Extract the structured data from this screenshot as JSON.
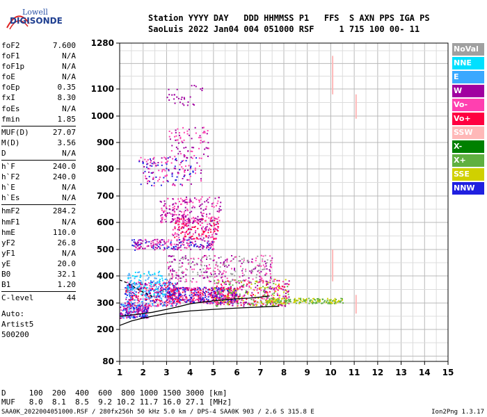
{
  "logo": {
    "top": "Lowell",
    "bottom": "DIGISONDE"
  },
  "header": {
    "line1": "Station YYYY DAY   DDD HHMMSS P1   FFS  S AXN PPS IGA PS",
    "line2": "SaoLuis 2022 Jan04 004 051000 RSF     1 715 100 00- 11"
  },
  "params": [
    {
      "k": "foF2",
      "v": "7.600"
    },
    {
      "k": "foF1",
      "v": "N/A"
    },
    {
      "k": "foF1p",
      "v": "N/A"
    },
    {
      "k": "foE",
      "v": "N/A"
    },
    {
      "k": "foEp",
      "v": "0.35"
    },
    {
      "k": "fxI",
      "v": "8.30"
    },
    {
      "k": "foEs",
      "v": "N/A"
    },
    {
      "k": "fmin",
      "v": "1.85"
    },
    {
      "k": "MUF(D)",
      "v": "27.07"
    },
    {
      "k": "M(D)",
      "v": "3.56"
    },
    {
      "k": "D",
      "v": "N/A"
    },
    {
      "k": "h`F",
      "v": "240.0"
    },
    {
      "k": "h`F2",
      "v": "240.0"
    },
    {
      "k": "h`E",
      "v": "N/A"
    },
    {
      "k": "h`Es",
      "v": "N/A"
    },
    {
      "k": "hmF2",
      "v": "284.2"
    },
    {
      "k": "hmF1",
      "v": "N/A"
    },
    {
      "k": "hmE",
      "v": "110.0"
    },
    {
      "k": "yF2",
      "v": "26.8"
    },
    {
      "k": "yF1",
      "v": "N/A"
    },
    {
      "k": "yE",
      "v": "20.0"
    },
    {
      "k": "B0",
      "v": "32.1"
    },
    {
      "k": "B1",
      "v": "1.20"
    },
    {
      "k": "C-level",
      "v": "44"
    }
  ],
  "auto": [
    "Auto:",
    "Artist5",
    "500200"
  ],
  "legend": [
    {
      "label": "NoVal",
      "color": "#a0a0a0"
    },
    {
      "label": "NNE",
      "color": "#00e0ff"
    },
    {
      "label": "E",
      "color": "#3aa8ff"
    },
    {
      "label": "W",
      "color": "#a000a0"
    },
    {
      "label": "Vo-",
      "color": "#ff40b0"
    },
    {
      "label": "Vo+",
      "color": "#ff0040"
    },
    {
      "label": "SSW",
      "color": "#ffb8b8"
    },
    {
      "label": "X-",
      "color": "#008000"
    },
    {
      "label": "X+",
      "color": "#60b040"
    },
    {
      "label": "SSE",
      "color": "#d0d000"
    },
    {
      "label": "NNW",
      "color": "#2020e0"
    }
  ],
  "chart_data": {
    "type": "scatter",
    "xlim": [
      1,
      15
    ],
    "ylim": [
      80,
      1280
    ],
    "x_ticks": [
      "1",
      "2",
      "3",
      "4",
      "5",
      "6",
      "7",
      "8",
      "9",
      "10",
      "11",
      "12",
      "13",
      "14",
      "15"
    ],
    "y_ticks": [
      "80",
      "200",
      "300",
      "400",
      "500",
      "600",
      "700",
      "800",
      "900",
      "1000",
      "1100",
      "1280"
    ],
    "y_tick_values": [
      80,
      200,
      300,
      400,
      500,
      600,
      700,
      800,
      900,
      1000,
      1100,
      1280
    ],
    "profile_curve": {
      "x": [
        1.0,
        1.5,
        2,
        2.5,
        3,
        4,
        5,
        6,
        7,
        7.8
      ],
      "y": [
        215,
        232,
        243,
        252,
        260,
        270,
        276,
        281,
        285,
        288
      ]
    },
    "trace_curve": {
      "x": [
        1.0,
        1.8,
        2.4,
        3,
        3.5,
        4,
        4.5,
        5,
        5.5,
        6,
        6.5,
        7,
        7.4
      ],
      "y": [
        250,
        258,
        265,
        276,
        286,
        297,
        303,
        308,
        312,
        316,
        318,
        322,
        326
      ]
    },
    "dashed_curve": {
      "x": [
        1.0,
        1.3,
        1.6,
        2.0,
        2.5
      ],
      "y": [
        385,
        375,
        360,
        340,
        320
      ]
    }
  },
  "footer": {
    "d_row": "D     100  200  400  600  800 1000 1500 3000 [km]",
    "muf_row": "MUF   8.0  8.1  8.5  9.2 10.2 11.7 16.0 27.1 [MHz]",
    "file": "SAA0K_2022004051000.RSF / 280fx256h 50 kHz 5.0 km / DPS-4 SAA0K 903 / 2.6 S 315.8 E",
    "version": "Ion2Png 1.3.17"
  }
}
